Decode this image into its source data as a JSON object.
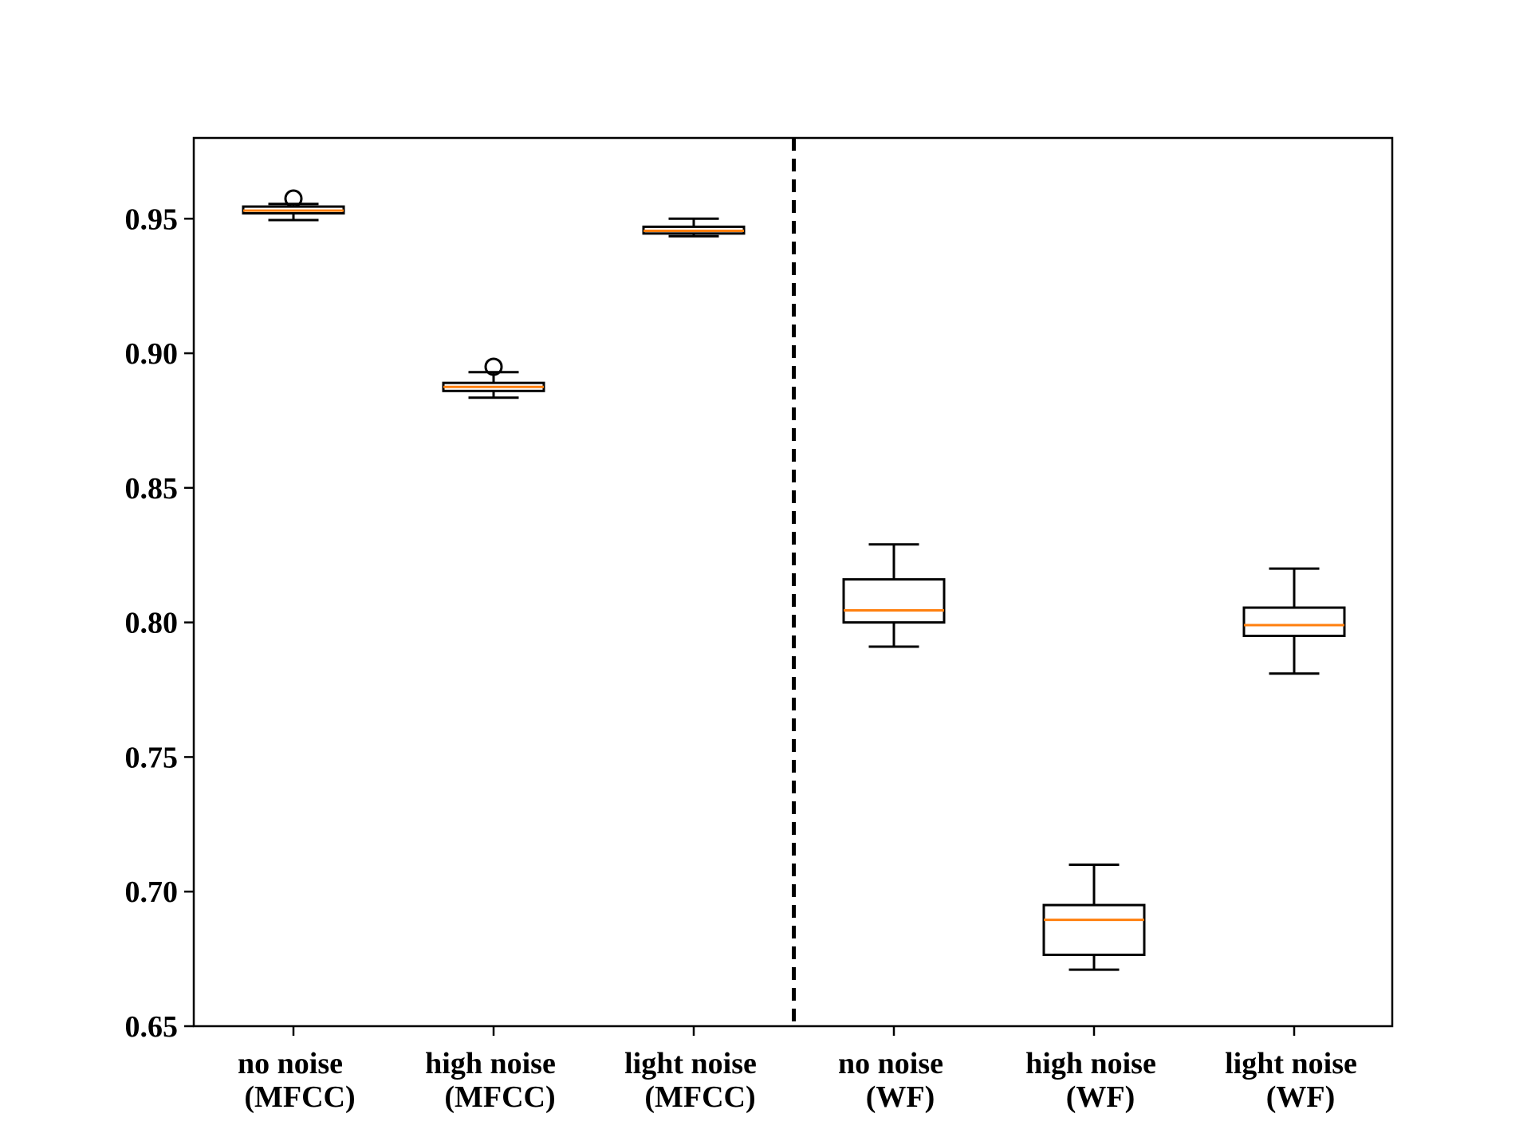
{
  "chart_data": {
    "type": "box",
    "title": "",
    "xlabel": "",
    "ylabel": "",
    "ylim": [
      0.65,
      0.98
    ],
    "yticks": [
      {
        "value": 0.65,
        "label": "0.65"
      },
      {
        "value": 0.7,
        "label": "0.70"
      },
      {
        "value": 0.75,
        "label": "0.75"
      },
      {
        "value": 0.8,
        "label": "0.80"
      },
      {
        "value": 0.85,
        "label": "0.85"
      },
      {
        "value": 0.9,
        "label": "0.90"
      },
      {
        "value": 0.95,
        "label": "0.95"
      }
    ],
    "categories": [
      {
        "line1": "no noise",
        "line2": "(MFCC)"
      },
      {
        "line1": "high noise",
        "line2": "(MFCC)"
      },
      {
        "line1": "light noise",
        "line2": "(MFCC)"
      },
      {
        "line1": "no noise",
        "line2": "(WF)"
      },
      {
        "line1": "high noise",
        "line2": "(WF)"
      },
      {
        "line1": "light noise",
        "line2": "(WF)"
      }
    ],
    "boxes": [
      {
        "whisker_low": 0.9495,
        "q1": 0.952,
        "median": 0.953,
        "q3": 0.9545,
        "whisker_high": 0.9555,
        "outliers": [
          0.9575
        ]
      },
      {
        "whisker_low": 0.8835,
        "q1": 0.886,
        "median": 0.8875,
        "q3": 0.889,
        "whisker_high": 0.893,
        "outliers": [
          0.895
        ]
      },
      {
        "whisker_low": 0.9435,
        "q1": 0.9445,
        "median": 0.9455,
        "q3": 0.947,
        "whisker_high": 0.95,
        "outliers": []
      },
      {
        "whisker_low": 0.791,
        "q1": 0.8,
        "median": 0.8045,
        "q3": 0.816,
        "whisker_high": 0.829,
        "outliers": []
      },
      {
        "whisker_low": 0.671,
        "q1": 0.6765,
        "median": 0.6895,
        "q3": 0.695,
        "whisker_high": 0.71,
        "outliers": []
      },
      {
        "whisker_low": 0.781,
        "q1": 0.795,
        "median": 0.799,
        "q3": 0.8055,
        "whisker_high": 0.82,
        "outliers": []
      }
    ],
    "separator_after_category": 3,
    "separator_style": "dashed",
    "grid": false,
    "legend": "none",
    "colors": {
      "box": "#000000",
      "median": "#ff7f0e",
      "separator": "#000000"
    }
  }
}
